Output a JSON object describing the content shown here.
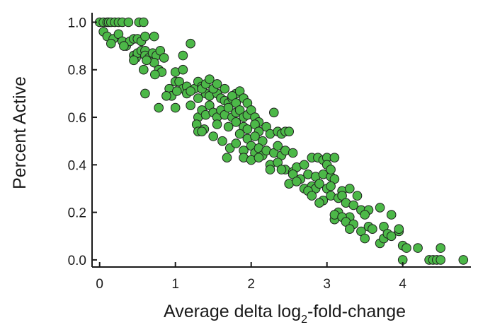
{
  "chart_data": {
    "type": "scatter",
    "title": "",
    "xlabel_parts": [
      "Average delta log",
      "2",
      "-fold-change"
    ],
    "ylabel": "Percent Active",
    "xlim": [
      -0.1,
      4.9
    ],
    "ylim": [
      -0.03,
      1.04
    ],
    "xticks": [
      0,
      1,
      2,
      3,
      4
    ],
    "yticks": [
      0.0,
      0.2,
      0.4,
      0.6,
      0.8,
      1.0
    ],
    "ytick_labels": [
      "0.0",
      "0.2",
      "0.4",
      "0.6",
      "0.8",
      "1.0"
    ],
    "xtick_labels": [
      "0",
      "1",
      "2",
      "3",
      "4"
    ],
    "grid": false,
    "marker_color": "#4cb848",
    "marker_edge_color": "#1f1f1f",
    "points": [
      [
        0.0,
        1.0
      ],
      [
        0.05,
        1.0
      ],
      [
        0.1,
        1.0
      ],
      [
        0.12,
        1.0
      ],
      [
        0.15,
        1.0
      ],
      [
        0.2,
        1.0
      ],
      [
        0.25,
        1.0
      ],
      [
        0.3,
        1.0
      ],
      [
        0.38,
        1.0
      ],
      [
        0.52,
        1.0
      ],
      [
        0.58,
        1.0
      ],
      [
        0.05,
        0.96
      ],
      [
        0.1,
        0.94
      ],
      [
        0.18,
        0.93
      ],
      [
        0.25,
        0.95
      ],
      [
        0.3,
        0.92
      ],
      [
        0.35,
        0.9
      ],
      [
        0.4,
        0.92
      ],
      [
        0.45,
        0.93
      ],
      [
        0.5,
        0.93
      ],
      [
        0.55,
        0.92
      ],
      [
        0.6,
        0.94
      ],
      [
        0.72,
        0.94
      ],
      [
        0.15,
        0.91
      ],
      [
        0.32,
        0.9
      ],
      [
        0.45,
        0.86
      ],
      [
        0.48,
        0.85
      ],
      [
        0.5,
        0.87
      ],
      [
        0.55,
        0.88
      ],
      [
        0.6,
        0.88
      ],
      [
        0.6,
        0.86
      ],
      [
        0.65,
        0.85
      ],
      [
        0.7,
        0.87
      ],
      [
        0.75,
        0.86
      ],
      [
        0.8,
        0.88
      ],
      [
        0.85,
        0.85
      ],
      [
        0.72,
        0.83
      ],
      [
        0.45,
        0.84
      ],
      [
        0.62,
        0.84
      ],
      [
        0.78,
        0.8
      ],
      [
        0.82,
        0.79
      ],
      [
        0.58,
        0.8
      ],
      [
        0.73,
        0.78
      ],
      [
        1.0,
        0.79
      ],
      [
        1.1,
        0.8
      ],
      [
        1.1,
        0.86
      ],
      [
        1.2,
        0.91
      ],
      [
        1.0,
        0.75
      ],
      [
        1.05,
        0.75
      ],
      [
        1.1,
        0.72
      ],
      [
        1.15,
        0.73
      ],
      [
        1.25,
        0.72
      ],
      [
        1.3,
        0.75
      ],
      [
        1.35,
        0.73
      ],
      [
        1.4,
        0.7
      ],
      [
        1.45,
        0.69
      ],
      [
        1.55,
        0.7
      ],
      [
        1.6,
        0.68
      ],
      [
        1.65,
        0.67
      ],
      [
        1.7,
        0.66
      ],
      [
        1.75,
        0.68
      ],
      [
        1.8,
        0.7
      ],
      [
        1.85,
        0.71
      ],
      [
        1.9,
        0.68
      ],
      [
        1.95,
        0.66
      ],
      [
        0.92,
        0.72
      ],
      [
        0.95,
        0.69
      ],
      [
        0.88,
        0.69
      ],
      [
        1.02,
        0.71
      ],
      [
        1.15,
        0.7
      ],
      [
        1.2,
        0.71
      ],
      [
        1.3,
        0.68
      ],
      [
        1.35,
        0.72
      ],
      [
        1.4,
        0.74
      ],
      [
        1.45,
        0.76
      ],
      [
        1.5,
        0.72
      ],
      [
        1.55,
        0.74
      ],
      [
        1.65,
        0.72
      ],
      [
        1.75,
        0.69
      ],
      [
        1.8,
        0.66
      ],
      [
        1.0,
        0.64
      ],
      [
        1.2,
        0.65
      ],
      [
        0.78,
        0.64
      ],
      [
        0.6,
        0.7
      ],
      [
        1.3,
        0.6
      ],
      [
        1.35,
        0.63
      ],
      [
        1.4,
        0.61
      ],
      [
        1.45,
        0.65
      ],
      [
        1.5,
        0.62
      ],
      [
        1.55,
        0.6
      ],
      [
        1.6,
        0.63
      ],
      [
        1.65,
        0.61
      ],
      [
        1.7,
        0.64
      ],
      [
        1.75,
        0.6
      ],
      [
        1.8,
        0.62
      ],
      [
        1.85,
        0.63
      ],
      [
        1.9,
        0.6
      ],
      [
        1.95,
        0.61
      ],
      [
        2.0,
        0.63
      ],
      [
        2.05,
        0.6
      ],
      [
        2.1,
        0.58
      ],
      [
        2.3,
        0.62
      ],
      [
        1.28,
        0.57
      ],
      [
        1.38,
        0.55
      ],
      [
        1.55,
        0.57
      ],
      [
        1.7,
        0.56
      ],
      [
        1.8,
        0.58
      ],
      [
        1.9,
        0.56
      ],
      [
        1.95,
        0.55
      ],
      [
        2.05,
        0.57
      ],
      [
        2.1,
        0.54
      ],
      [
        2.2,
        0.56
      ],
      [
        1.3,
        0.54
      ],
      [
        1.35,
        0.54
      ],
      [
        1.5,
        0.52
      ],
      [
        1.62,
        0.5
      ],
      [
        1.85,
        0.53
      ],
      [
        1.95,
        0.51
      ],
      [
        2.05,
        0.52
      ],
      [
        2.15,
        0.5
      ],
      [
        2.25,
        0.53
      ],
      [
        2.35,
        0.54
      ],
      [
        2.4,
        0.53
      ],
      [
        2.45,
        0.54
      ],
      [
        2.5,
        0.54
      ],
      [
        1.72,
        0.47
      ],
      [
        1.8,
        0.49
      ],
      [
        1.9,
        0.46
      ],
      [
        2.0,
        0.48
      ],
      [
        2.05,
        0.45
      ],
      [
        2.1,
        0.47
      ],
      [
        2.15,
        0.44
      ],
      [
        2.2,
        0.46
      ],
      [
        2.3,
        0.45
      ],
      [
        2.35,
        0.48
      ],
      [
        2.4,
        0.44
      ],
      [
        2.45,
        0.46
      ],
      [
        2.55,
        0.45
      ],
      [
        1.68,
        0.43
      ],
      [
        1.9,
        0.43
      ],
      [
        2.0,
        0.42
      ],
      [
        2.1,
        0.43
      ],
      [
        2.25,
        0.4
      ],
      [
        2.35,
        0.41
      ],
      [
        2.45,
        0.38
      ],
      [
        2.55,
        0.37
      ],
      [
        2.6,
        0.39
      ],
      [
        2.7,
        0.4
      ],
      [
        2.8,
        0.43
      ],
      [
        2.88,
        0.43
      ],
      [
        2.95,
        0.42
      ],
      [
        3.0,
        0.43
      ],
      [
        3.1,
        0.43
      ],
      [
        2.25,
        0.38
      ],
      [
        2.4,
        0.38
      ],
      [
        2.55,
        0.36
      ],
      [
        2.65,
        0.34
      ],
      [
        2.75,
        0.36
      ],
      [
        2.85,
        0.35
      ],
      [
        2.95,
        0.36
      ],
      [
        3.05,
        0.35
      ],
      [
        3.1,
        0.34
      ],
      [
        3.0,
        0.4
      ],
      [
        3.05,
        0.38
      ],
      [
        2.5,
        0.32
      ],
      [
        2.6,
        0.33
      ],
      [
        2.7,
        0.3
      ],
      [
        2.8,
        0.31
      ],
      [
        2.85,
        0.3
      ],
      [
        2.9,
        0.32
      ],
      [
        3.0,
        0.3
      ],
      [
        3.05,
        0.31
      ],
      [
        3.2,
        0.29
      ],
      [
        3.3,
        0.3
      ],
      [
        3.4,
        0.27
      ],
      [
        2.75,
        0.29
      ],
      [
        2.8,
        0.27
      ],
      [
        2.95,
        0.25
      ],
      [
        3.05,
        0.27
      ],
      [
        3.15,
        0.26
      ],
      [
        3.2,
        0.27
      ],
      [
        3.25,
        0.24
      ],
      [
        3.35,
        0.23
      ],
      [
        3.45,
        0.21
      ],
      [
        3.55,
        0.21
      ],
      [
        3.7,
        0.22
      ],
      [
        2.9,
        0.24
      ],
      [
        3.15,
        0.2
      ],
      [
        3.3,
        0.18
      ],
      [
        3.5,
        0.19
      ],
      [
        3.85,
        0.19
      ],
      [
        3.75,
        0.14
      ],
      [
        3.1,
        0.17
      ],
      [
        3.1,
        0.19
      ],
      [
        3.2,
        0.18
      ],
      [
        3.25,
        0.16
      ],
      [
        3.35,
        0.15
      ],
      [
        3.3,
        0.13
      ],
      [
        3.45,
        0.12
      ],
      [
        3.55,
        0.14
      ],
      [
        3.6,
        0.13
      ],
      [
        3.5,
        0.09
      ],
      [
        3.7,
        0.07
      ],
      [
        3.75,
        0.09
      ],
      [
        3.8,
        0.11
      ],
      [
        3.95,
        0.12
      ],
      [
        4.0,
        0.06
      ],
      [
        4.05,
        0.05
      ],
      [
        4.2,
        0.05
      ],
      [
        4.5,
        0.05
      ],
      [
        3.85,
        0.1
      ],
      [
        3.95,
        0.13
      ],
      [
        4.0,
        0.0
      ],
      [
        4.35,
        0.0
      ],
      [
        4.4,
        0.0
      ],
      [
        4.45,
        0.0
      ],
      [
        4.5,
        0.0
      ],
      [
        4.8,
        0.0
      ]
    ]
  }
}
